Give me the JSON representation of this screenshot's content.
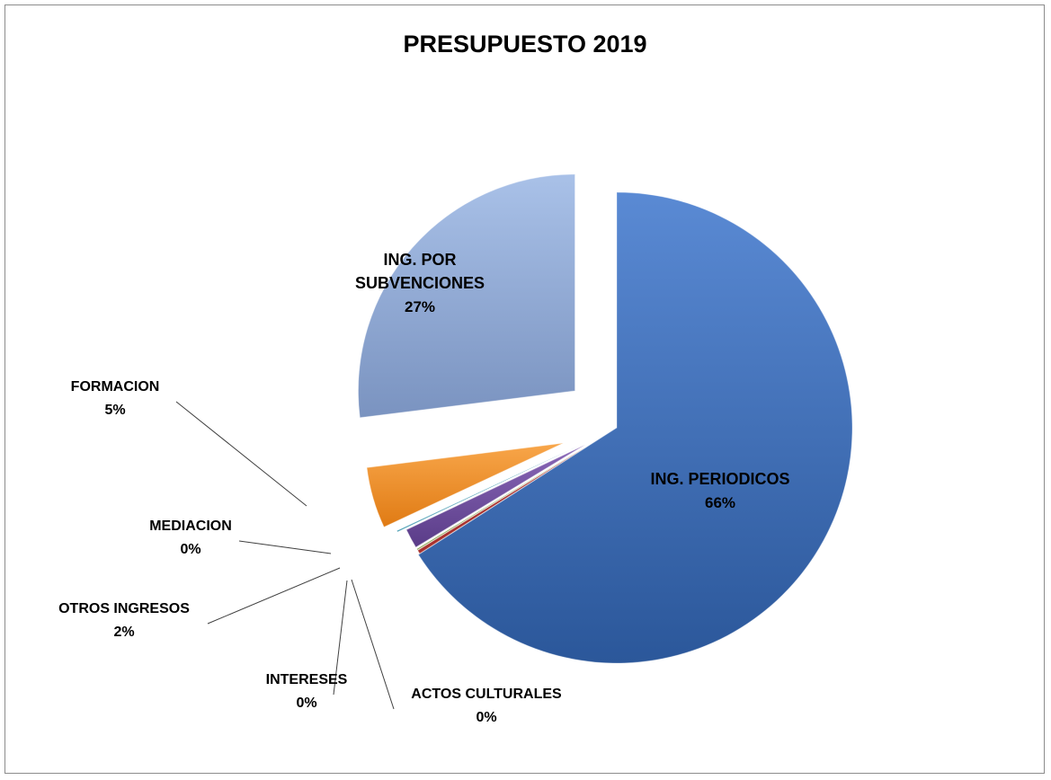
{
  "chart_data": {
    "type": "pie",
    "title": "PRESUPUESTO 2019",
    "slices": [
      {
        "name": "ING. PERIODICOS",
        "value": 66,
        "label": "66%",
        "color": "#3a68b0"
      },
      {
        "name": "ACTOS CULTURALES",
        "value": 0.3,
        "label": "0%",
        "color": "#a8322e"
      },
      {
        "name": "INTERESES",
        "value": 0.1,
        "label": "0%",
        "color": "#7e9c3c"
      },
      {
        "name": "OTROS INGRESOS",
        "value": 1.6,
        "label": "2%",
        "color": "#6a4a9a"
      },
      {
        "name": "MEDIACION",
        "value": 0.1,
        "label": "0%",
        "color": "#2f8fa8"
      },
      {
        "name": "FORMACION",
        "value": 5,
        "label": "5%",
        "color": "#ee8c24"
      },
      {
        "name": "ING. POR SUBVENCIONES",
        "value": 27,
        "label": "27%",
        "color": "#8ea9d6"
      }
    ],
    "label_lines": {
      "ING. PERIODICOS": [
        "ING. PERIODICOS",
        "66%"
      ],
      "ACTOS CULTURALES": [
        "ACTOS CULTURALES",
        "0%"
      ],
      "INTERESES": [
        "INTERESES",
        "0%"
      ],
      "OTROS INGRESOS": [
        "OTROS INGRESOS",
        "2%"
      ],
      "MEDIACION": [
        "MEDIACION",
        "0%"
      ],
      "FORMACION": [
        "FORMACION",
        "5%"
      ],
      "ING. POR SUBVENCIONES": [
        "ING. POR",
        "SUBVENCIONES",
        "27%"
      ]
    }
  }
}
